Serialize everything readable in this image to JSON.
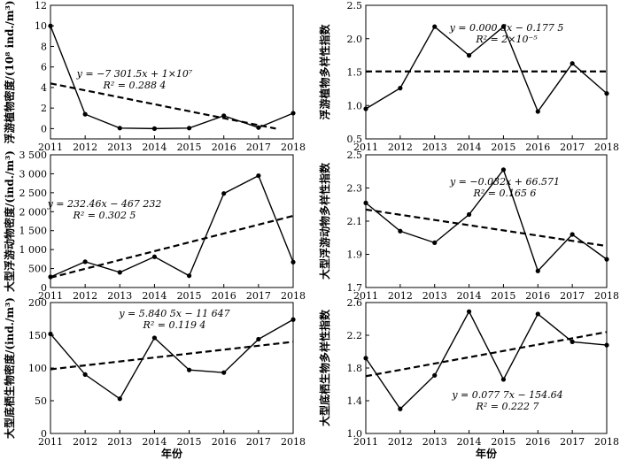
{
  "chart_data": [
    {
      "type": "line",
      "ylabel": "浮游植物密度/(10⁸ ind./m³)",
      "x": [
        2011,
        2012,
        2013,
        2014,
        2015,
        2016,
        2017,
        2018
      ],
      "xlim": [
        2011,
        2018
      ],
      "ylim": [
        -1,
        12
      ],
      "yticks": [
        0,
        2,
        4,
        6,
        8,
        10,
        12
      ],
      "ytick_labels": [
        "0",
        "2",
        "4",
        "6",
        "8",
        "10",
        "12"
      ],
      "series": [
        {
          "values": [
            10.0,
            1.4,
            0.05,
            0.0,
            0.05,
            1.25,
            0.1,
            1.5
          ]
        }
      ],
      "trend": {
        "start": [
          2011,
          4.4
        ],
        "end": [
          2017.5,
          0.0
        ]
      },
      "equation_lines": [
        "y = −7 301.5x + 1×10⁷",
        "R² = 0.288 4"
      ]
    },
    {
      "type": "line",
      "ylabel": "浮游植物多样性指数",
      "x": [
        2011,
        2012,
        2013,
        2014,
        2015,
        2016,
        2017,
        2018
      ],
      "xlim": [
        2011,
        2018
      ],
      "ylim": [
        0.5,
        2.5
      ],
      "yticks": [
        0.5,
        1.0,
        1.5,
        2.0,
        2.5
      ],
      "ytick_labels": [
        "0.5",
        "1.0",
        "1.5",
        "2.0",
        "2.5"
      ],
      "series": [
        {
          "values": [
            0.95,
            1.26,
            2.18,
            1.75,
            2.18,
            0.91,
            1.63,
            1.18
          ]
        }
      ],
      "trend": {
        "start": [
          2011,
          1.51
        ],
        "end": [
          2018,
          1.51
        ]
      },
      "equation_lines": [
        "y = 0.000 8x − 0.177 5",
        "R² = 2×10⁻⁵"
      ]
    },
    {
      "type": "line",
      "ylabel": "大型浮游动物密度/(ind./m³)",
      "x": [
        2011,
        2012,
        2013,
        2014,
        2015,
        2016,
        2017,
        2018
      ],
      "xlim": [
        2011,
        2018
      ],
      "ylim": [
        0,
        3500
      ],
      "yticks": [
        0,
        500,
        1000,
        1500,
        2000,
        2500,
        3000,
        3500
      ],
      "ytick_labels": [
        "0",
        "500",
        "1 000",
        "1 500",
        "2 000",
        "2 500",
        "3 000",
        "3 500"
      ],
      "series": [
        {
          "values": [
            280,
            680,
            400,
            810,
            310,
            2480,
            2950,
            670
          ]
        }
      ],
      "trend": {
        "start": [
          2011,
          260
        ],
        "end": [
          2018,
          1890
        ]
      },
      "equation_lines": [
        "y = 232.46x − 467 232",
        "R² = 0.302 5"
      ]
    },
    {
      "type": "line",
      "ylabel": "大型浮游动物多样性指数",
      "x": [
        2011,
        2012,
        2013,
        2014,
        2015,
        2016,
        2017,
        2018
      ],
      "xlim": [
        2011,
        2018
      ],
      "ylim": [
        1.7,
        2.5
      ],
      "yticks": [
        1.7,
        1.9,
        2.1,
        2.3,
        2.5
      ],
      "ytick_labels": [
        "1.7",
        "1.9",
        "2.1",
        "2.3",
        "2.5"
      ],
      "series": [
        {
          "values": [
            2.21,
            2.04,
            1.97,
            2.14,
            2.41,
            1.8,
            2.02,
            1.87
          ]
        }
      ],
      "trend": {
        "start": [
          2011,
          2.17
        ],
        "end": [
          2018,
          1.95
        ]
      },
      "equation_lines": [
        "y = −0.032x + 66.571",
        "R² = 0.165 6"
      ]
    },
    {
      "type": "line",
      "ylabel": "大型底栖生物密度/(ind./m³)",
      "xlabel": "年份",
      "x": [
        2011,
        2012,
        2013,
        2014,
        2015,
        2016,
        2017,
        2018
      ],
      "xlim": [
        2011,
        2018
      ],
      "ylim": [
        0,
        200
      ],
      "yticks": [
        0,
        50,
        100,
        150,
        200
      ],
      "ytick_labels": [
        "0",
        "50",
        "100",
        "150",
        "200"
      ],
      "series": [
        {
          "values": [
            152,
            90,
            53,
            146,
            97,
            93,
            144,
            174
          ]
        }
      ],
      "trend": {
        "start": [
          2011,
          98
        ],
        "end": [
          2018,
          140
        ]
      },
      "equation_lines": [
        "y = 5.840 5x − 11 647",
        "R² = 0.119 4"
      ]
    },
    {
      "type": "line",
      "ylabel": "大型底栖生物多样性指数",
      "xlabel": "年份",
      "x": [
        2011,
        2012,
        2013,
        2014,
        2015,
        2016,
        2017,
        2018
      ],
      "xlim": [
        2011,
        2018
      ],
      "ylim": [
        1.0,
        2.6
      ],
      "yticks": [
        1.0,
        1.4,
        1.8,
        2.2,
        2.6
      ],
      "ytick_labels": [
        "1.0",
        "1.4",
        "1.8",
        "2.2",
        "2.6"
      ],
      "series": [
        {
          "values": [
            1.92,
            1.3,
            1.71,
            2.49,
            1.66,
            2.46,
            2.12,
            2.08
          ]
        }
      ],
      "trend": {
        "start": [
          2011,
          1.7
        ],
        "end": [
          2018,
          2.24
        ]
      },
      "equation_lines": [
        "y = 0.077 7x − 154.64",
        "R² = 0.222 7"
      ]
    }
  ]
}
